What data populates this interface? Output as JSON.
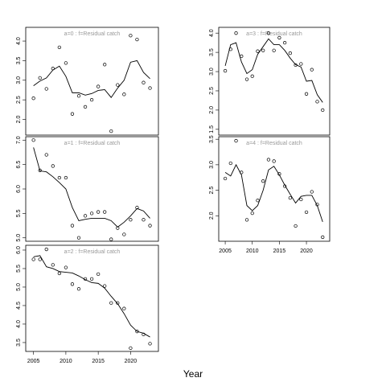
{
  "x_axis_title": "Year",
  "chart_data": [
    {
      "type": "scatter",
      "title": "a=0  :  f=Residual catch",
      "x": [
        2005,
        2006,
        2007,
        2008,
        2009,
        2010,
        2011,
        2012,
        2013,
        2014,
        2015,
        2016,
        2017,
        2018,
        2019,
        2020,
        2021,
        2022,
        2023
      ],
      "values": [
        2.54,
        3.06,
        2.78,
        3.3,
        3.84,
        3.44,
        2.14,
        2.6,
        2.32,
        2.5,
        2.84,
        3.4,
        1.7,
        2.88,
        2.64,
        4.14,
        4.04,
        2.94,
        2.8
      ],
      "fitted": [
        2.86,
        2.98,
        3.06,
        3.26,
        3.36,
        3.1,
        2.68,
        2.68,
        2.62,
        2.66,
        2.74,
        2.76,
        2.56,
        2.8,
        3.0,
        3.46,
        3.5,
        3.2,
        3.04
      ],
      "xlim": [
        2003.8,
        2024.3
      ],
      "ylim": [
        1.6,
        4.35
      ],
      "yticks": [
        {
          "value": 2,
          "label": "2.0"
        },
        2.5,
        {
          "value": 3,
          "label": "3.0"
        },
        3.5,
        {
          "value": 4,
          "label": "4.0"
        }
      ]
    },
    {
      "type": "scatter",
      "title": "a=1  :  f=Residual catch",
      "x": [
        2005,
        2006,
        2007,
        2008,
        2009,
        2010,
        2011,
        2012,
        2013,
        2014,
        2015,
        2016,
        2017,
        2018,
        2019,
        2020,
        2021,
        2022,
        2023
      ],
      "values": [
        7.0,
        6.38,
        6.7,
        6.47,
        6.23,
        6.23,
        5.25,
        5.0,
        5.45,
        5.5,
        5.53,
        5.53,
        4.97,
        5.2,
        5.07,
        5.37,
        5.62,
        5.37,
        5.25
      ],
      "fitted": [
        6.85,
        6.37,
        6.35,
        6.25,
        6.13,
        6.0,
        5.62,
        5.35,
        5.38,
        5.4,
        5.4,
        5.4,
        5.35,
        5.22,
        5.32,
        5.45,
        5.6,
        5.55,
        5.4
      ],
      "xlim": [
        2003.8,
        2024.3
      ],
      "ylim": [
        4.93,
        7.07
      ],
      "yticks": [
        {
          "value": 5,
          "label": "5.0"
        },
        5.5,
        {
          "value": 6,
          "label": "6.0"
        },
        6.5,
        {
          "value": 7,
          "label": "7.0"
        }
      ]
    },
    {
      "type": "scatter",
      "title": "a=2  :  f=Residual catch",
      "x": [
        2005,
        2006,
        2007,
        2008,
        2009,
        2010,
        2011,
        2012,
        2013,
        2014,
        2015,
        2016,
        2017,
        2018,
        2019,
        2020,
        2021,
        2022,
        2023
      ],
      "values": [
        5.75,
        5.75,
        6.02,
        5.6,
        5.37,
        5.53,
        5.08,
        4.95,
        5.22,
        5.22,
        5.35,
        5.03,
        4.57,
        4.57,
        4.42,
        3.35,
        3.8,
        3.72,
        3.47
      ],
      "fitted": [
        5.82,
        5.85,
        5.55,
        5.5,
        5.42,
        5.4,
        5.38,
        5.3,
        5.2,
        5.12,
        5.1,
        4.97,
        4.75,
        4.55,
        4.28,
        3.97,
        3.8,
        3.75,
        3.65
      ],
      "xlim": [
        2003.8,
        2024.3
      ],
      "ylim": [
        3.26,
        6.13
      ],
      "xticks": [
        2005,
        2010,
        2015,
        2020
      ],
      "yticks": [
        3.5,
        {
          "value": 4,
          "label": "4.0"
        },
        4.5,
        {
          "value": 5,
          "label": "5.0"
        },
        5.5,
        {
          "value": 6,
          "label": "6.0"
        }
      ]
    },
    {
      "type": "scatter",
      "title": "a=3  :  f=Residual catch",
      "x": [
        2005,
        2006,
        2007,
        2008,
        2009,
        2010,
        2011,
        2012,
        2013,
        2014,
        2015,
        2016,
        2017,
        2018,
        2019,
        2020,
        2021,
        2022,
        2023
      ],
      "values": [
        3.02,
        3.58,
        4.0,
        3.4,
        2.8,
        2.88,
        3.53,
        3.55,
        4.0,
        3.55,
        3.88,
        3.75,
        3.48,
        3.17,
        3.2,
        2.42,
        3.05,
        2.22,
        2.0
      ],
      "fitted": [
        3.15,
        3.7,
        3.75,
        3.25,
        2.95,
        3.05,
        3.45,
        3.65,
        3.85,
        3.7,
        3.7,
        3.55,
        3.35,
        3.18,
        3.12,
        2.75,
        2.77,
        2.4,
        2.2
      ],
      "xlim": [
        2003.8,
        2024.3
      ],
      "ylim": [
        1.35,
        4.15
      ],
      "yticks": [
        1.5,
        {
          "value": 2,
          "label": "2.0"
        },
        2.5,
        {
          "value": 3,
          "label": "3.0"
        },
        3.5,
        {
          "value": 4,
          "label": "4.0"
        }
      ]
    },
    {
      "type": "scatter",
      "title": "a=4  :  f=Residual catch",
      "x": [
        2005,
        2006,
        2007,
        2008,
        2009,
        2010,
        2011,
        2012,
        2013,
        2014,
        2015,
        2016,
        2017,
        2018,
        2019,
        2020,
        2021,
        2022,
        2023
      ],
      "values": [
        2.73,
        3.03,
        3.47,
        2.85,
        1.92,
        2.05,
        2.3,
        2.68,
        3.1,
        3.07,
        2.82,
        2.58,
        2.35,
        1.8,
        2.32,
        2.07,
        2.47,
        2.22,
        1.58
      ],
      "fitted": [
        2.85,
        2.78,
        3.0,
        2.8,
        2.2,
        2.1,
        2.2,
        2.5,
        2.9,
        2.97,
        2.8,
        2.6,
        2.42,
        2.25,
        2.38,
        2.4,
        2.4,
        2.2,
        1.88
      ],
      "xlim": [
        2003.8,
        2024.3
      ],
      "ylim": [
        1.5,
        3.55
      ],
      "xticks": [
        2005,
        2010,
        2015,
        2020
      ],
      "yticks": [
        {
          "value": 2,
          "label": "2.0"
        },
        2.5,
        {
          "value": 3,
          "label": "3.0"
        },
        3.5
      ]
    }
  ]
}
